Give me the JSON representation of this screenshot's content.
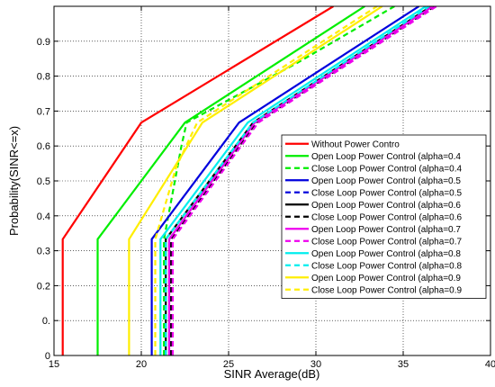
{
  "chart_data": {
    "type": "line",
    "title": "",
    "xlabel": "SINR Average(dB)",
    "ylabel": "Probability(SINR<=x)",
    "xlim": [
      15,
      40
    ],
    "ylim": [
      0,
      1
    ],
    "xticks": [
      15,
      20,
      25,
      30,
      35,
      40
    ],
    "xtick_labels": [
      "15",
      "20",
      "25",
      "30",
      "35",
      "40"
    ],
    "yticks": [
      0,
      0.1,
      0.2,
      0.3,
      0.4,
      0.5,
      0.6,
      0.7,
      0.8,
      0.9
    ],
    "ytick_labels": [
      "0",
      "0.",
      "0.2",
      "0.3",
      "0.4",
      "0.5",
      "0.6",
      "0.7",
      "0.8",
      "0.9"
    ],
    "grid": true,
    "legend_position": "bottom-right",
    "series": [
      {
        "name": "Without Power Contro",
        "color": "#ff0000",
        "dash": "solid",
        "points": [
          [
            15.5,
            0
          ],
          [
            15.5,
            0.333
          ],
          [
            20,
            0.667
          ],
          [
            31,
            1
          ]
        ]
      },
      {
        "name": "Open Loop Power Control (alpha=0.4",
        "color": "#00ee00",
        "dash": "solid",
        "points": [
          [
            17.5,
            0
          ],
          [
            17.5,
            0.333
          ],
          [
            22.5,
            0.667
          ],
          [
            32.8,
            1
          ]
        ]
      },
      {
        "name": "Close Loop Power Control (alpha=0.4",
        "color": "#00ee00",
        "dash": "dashed",
        "points": [
          [
            21.3,
            0
          ],
          [
            21.3,
            0.333
          ],
          [
            22.3,
            0.6
          ],
          [
            22.6,
            0.667
          ],
          [
            29,
            0.84
          ],
          [
            34.5,
            1
          ]
        ]
      },
      {
        "name": "Open Loop Power Control (alpha=0.5",
        "color": "#0000dd",
        "dash": "solid",
        "points": [
          [
            20.6,
            0
          ],
          [
            20.6,
            0.333
          ],
          [
            25.6,
            0.667
          ],
          [
            35.9,
            1
          ]
        ]
      },
      {
        "name": "Close Loop Power Control (alpha=0.5",
        "color": "#0000dd",
        "dash": "dashed",
        "points": [
          [
            21.6,
            0
          ],
          [
            21.6,
            0.333
          ],
          [
            26.5,
            0.667
          ],
          [
            36.6,
            1
          ]
        ]
      },
      {
        "name": "Open Loop Power Control (alpha=0.6",
        "color": "#000000",
        "dash": "solid",
        "points": [
          [
            21.4,
            0
          ],
          [
            21.4,
            0.333
          ],
          [
            26.4,
            0.667
          ],
          [
            36.6,
            1
          ]
        ]
      },
      {
        "name": "Close Loop Power Control (alpha=0.6",
        "color": "#000000",
        "dash": "dashed",
        "points": [
          [
            21.7,
            0
          ],
          [
            21.7,
            0.333
          ],
          [
            26.6,
            0.667
          ],
          [
            36.8,
            1
          ]
        ]
      },
      {
        "name": "Open Loop Power Control (alpha=0.7",
        "color": "#ee00ee",
        "dash": "solid",
        "points": [
          [
            21.6,
            0
          ],
          [
            21.6,
            0.333
          ],
          [
            26.5,
            0.667
          ],
          [
            36.7,
            1
          ]
        ]
      },
      {
        "name": "Close Loop Power Control (alpha=0.7",
        "color": "#ee00ee",
        "dash": "dashed",
        "points": [
          [
            21.8,
            0
          ],
          [
            21.8,
            0.333
          ],
          [
            26.7,
            0.667
          ],
          [
            36.9,
            1
          ]
        ]
      },
      {
        "name": "Open Loop Power Control (alpha=0.8",
        "color": "#00eeee",
        "dash": "solid",
        "points": [
          [
            21.1,
            0
          ],
          [
            21.1,
            0.333
          ],
          [
            26.1,
            0.667
          ],
          [
            36.3,
            1
          ]
        ]
      },
      {
        "name": "Close Loop Power Control (alpha=0.8",
        "color": "#00eeee",
        "dash": "dashed",
        "points": [
          [
            21.4,
            0
          ],
          [
            21.4,
            0.333
          ],
          [
            26.4,
            0.667
          ],
          [
            36.5,
            1
          ]
        ]
      },
      {
        "name": "Open Loop Power Control (alpha=0.9",
        "color": "#ffee00",
        "dash": "solid",
        "points": [
          [
            19.3,
            0
          ],
          [
            19.3,
            0.333
          ],
          [
            23.5,
            0.667
          ],
          [
            33.8,
            1
          ]
        ]
      },
      {
        "name": "Close Loop Power Control (alpha=0.9",
        "color": "#ffee00",
        "dash": "dashed",
        "points": [
          [
            20.8,
            0
          ],
          [
            20.8,
            0.333
          ],
          [
            22,
            0.54
          ],
          [
            23.2,
            0.667
          ],
          [
            33.5,
            1
          ]
        ]
      }
    ]
  }
}
